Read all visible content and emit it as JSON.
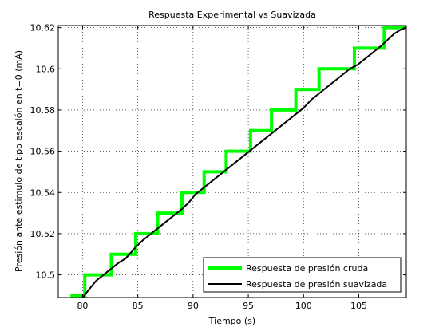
{
  "chart_data": {
    "type": "line",
    "title": "Respuesta Experimental vs Suavizada",
    "xlabel": "Tiempo (s)",
    "ylabel": "Presión ante estimulo de tipo escalón en t=0 (mA)",
    "xlim": [
      77.8,
      109.3
    ],
    "ylim": [
      10.489,
      10.621
    ],
    "xticks": [
      80,
      85,
      90,
      95,
      100,
      105
    ],
    "yticks": [
      10.5,
      10.52,
      10.54,
      10.56,
      10.58,
      10.6,
      10.62
    ],
    "xtick_labels": [
      "80",
      "85",
      "90",
      "95",
      "100",
      "105"
    ],
    "ytick_labels": [
      "10.5",
      "10.52",
      "10.54",
      "10.56",
      "10.58",
      "10.6",
      "10.62"
    ],
    "grid": true,
    "legend_position": "bottom-right",
    "series": [
      {
        "name": "Respuesta de presión cruda",
        "color": "#00ff00",
        "x": [
          78.9,
          80.2,
          80.2,
          81.7,
          81.7,
          82.6,
          82.6,
          84.2,
          84.2,
          84.8,
          84.8,
          86.2,
          86.2,
          86.8,
          86.8,
          88.3,
          88.3,
          89.0,
          89.0,
          90.3,
          90.3,
          91.0,
          91.0,
          92.3,
          92.3,
          93.0,
          93.0,
          94.4,
          94.4,
          95.2,
          95.2,
          96.6,
          96.6,
          97.1,
          97.1,
          98.6,
          98.6,
          99.3,
          99.3,
          100.6,
          100.6,
          101.4,
          101.4,
          103.9,
          103.9,
          104.6,
          104.6,
          106.7,
          106.7,
          107.3,
          107.3,
          109.3
        ],
        "y": [
          10.49,
          10.49,
          10.5,
          10.5,
          10.5,
          10.5,
          10.51,
          10.51,
          10.51,
          10.51,
          10.52,
          10.52,
          10.52,
          10.52,
          10.53,
          10.53,
          10.53,
          10.53,
          10.54,
          10.54,
          10.54,
          10.54,
          10.55,
          10.55,
          10.55,
          10.55,
          10.56,
          10.56,
          10.56,
          10.56,
          10.57,
          10.57,
          10.57,
          10.57,
          10.58,
          10.58,
          10.58,
          10.58,
          10.59,
          10.59,
          10.59,
          10.59,
          10.6,
          10.6,
          10.6,
          10.6,
          10.61,
          10.61,
          10.61,
          10.61,
          10.62,
          10.62
        ]
      },
      {
        "name": "Respuesta de presión suavizada",
        "color": "#000000",
        "x": [
          80.0,
          80.6,
          81.2,
          81.9,
          82.6,
          83.3,
          83.9,
          84.4,
          84.9,
          85.5,
          86.2,
          86.9,
          87.6,
          88.3,
          89.0,
          89.6,
          90.2,
          90.9,
          91.6,
          92.3,
          93.0,
          93.7,
          94.4,
          95.1,
          95.8,
          96.5,
          97.2,
          97.9,
          98.6,
          99.3,
          100.0,
          100.7,
          101.4,
          102.1,
          102.8,
          103.5,
          104.2,
          104.9,
          105.6,
          106.3,
          107.0,
          107.6,
          108.2,
          108.8,
          109.3
        ],
        "y": [
          10.489,
          10.493,
          10.497,
          10.5,
          10.503,
          10.506,
          10.508,
          10.511,
          10.514,
          10.517,
          10.52,
          10.523,
          10.526,
          10.529,
          10.532,
          10.535,
          10.539,
          10.542,
          10.545,
          10.548,
          10.551,
          10.554,
          10.557,
          10.56,
          10.563,
          10.566,
          10.569,
          10.572,
          10.575,
          10.578,
          10.581,
          10.585,
          10.588,
          10.591,
          10.594,
          10.597,
          10.6,
          10.602,
          10.605,
          10.608,
          10.611,
          10.614,
          10.617,
          10.619,
          10.62
        ]
      }
    ]
  }
}
